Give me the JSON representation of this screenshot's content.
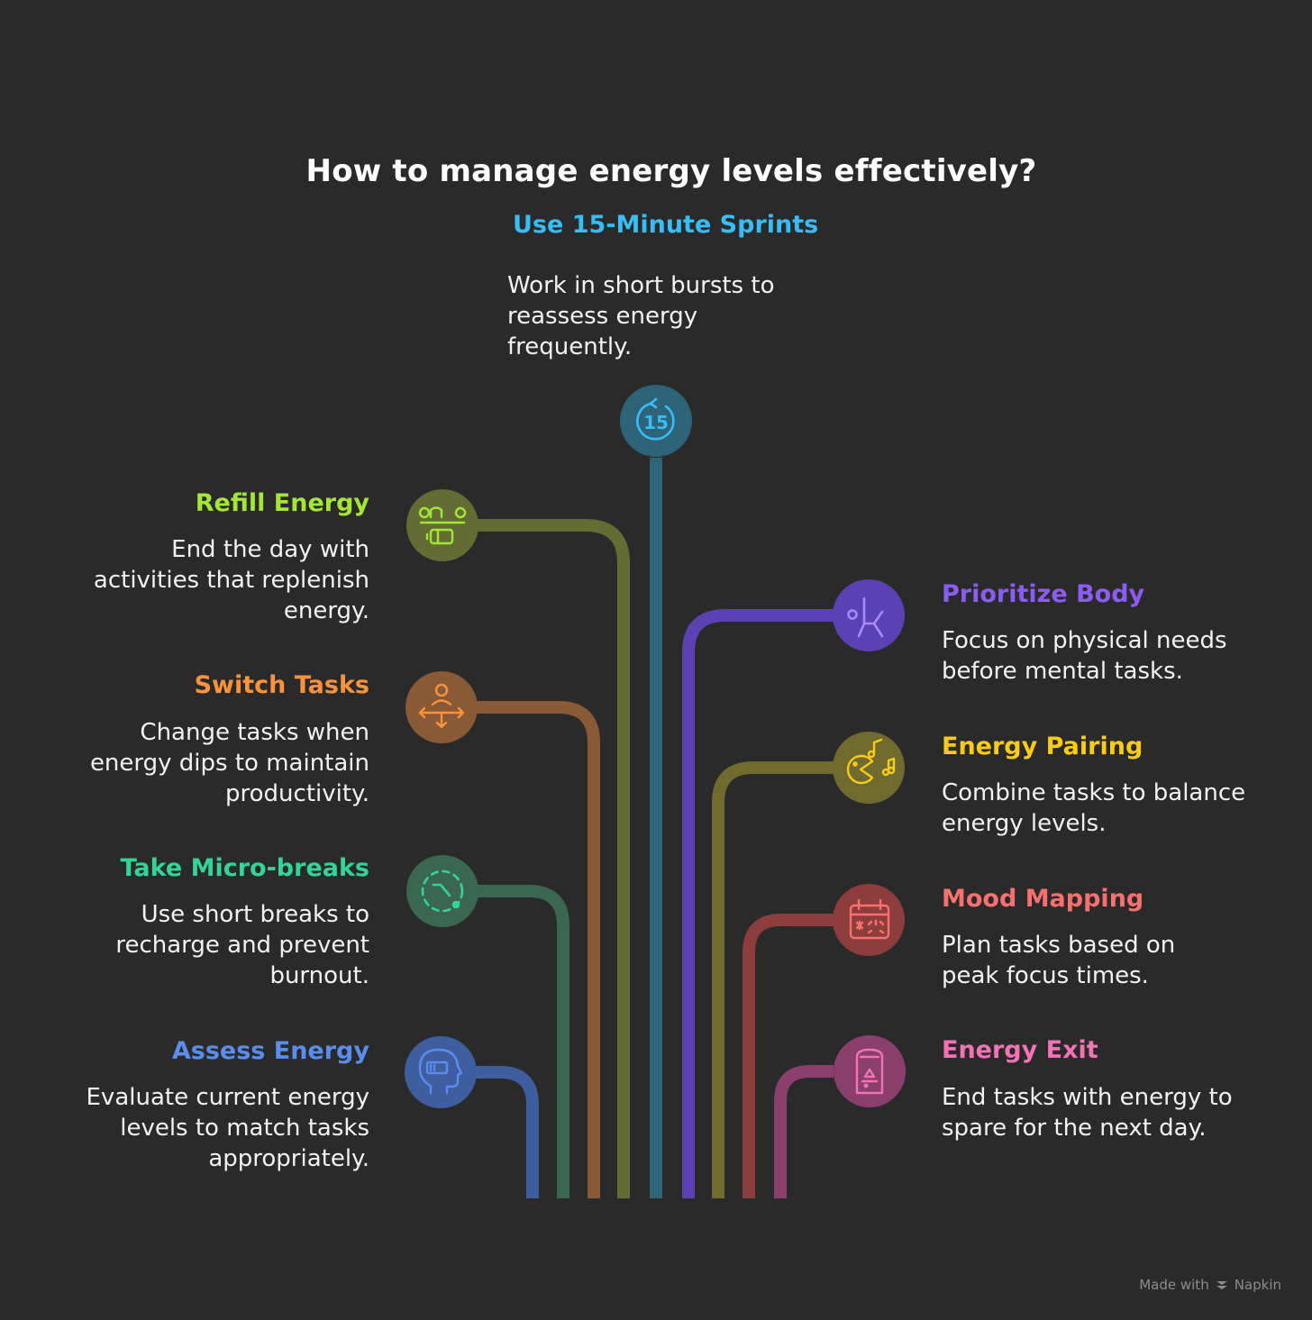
{
  "title": "How to manage energy levels effectively?",
  "items": {
    "sprints": {
      "heading": "Use 15-Minute Sprints",
      "description": "Work in short bursts to reassess energy frequently.",
      "color": "#38bdf8",
      "icon": "timer-15-icon",
      "icon_text": "15"
    },
    "refill": {
      "heading": "Refill Energy",
      "description": "End the day with activities that replenish energy.",
      "color": "#a3e635",
      "icon": "recharge-icon"
    },
    "switch": {
      "heading": "Switch Tasks",
      "description": "Change tasks when energy dips to maintain productivity.",
      "color": "#fb923c",
      "icon": "switch-person-icon"
    },
    "breaks": {
      "heading": "Take Micro-breaks",
      "description": "Use short breaks to recharge and prevent burnout.",
      "color": "#34d399",
      "icon": "timer-dashed-icon"
    },
    "assess": {
      "heading": "Assess Energy",
      "description": "Evaluate current energy levels to match tasks appropriately.",
      "color": "#5b8def",
      "icon": "head-battery-icon"
    },
    "body": {
      "heading": "Prioritize Body",
      "description": "Focus on physical needs before mental tasks.",
      "color": "#8b5cf6",
      "icon": "stretch-icon"
    },
    "pairing": {
      "heading": "Energy Pairing",
      "description": "Combine tasks to balance energy levels.",
      "color": "#facc15",
      "icon": "music-pacman-icon"
    },
    "mood": {
      "heading": "Mood Mapping",
      "description": "Plan tasks based on peak focus times.",
      "color": "#f87171",
      "icon": "calendar-icon"
    },
    "exit": {
      "heading": "Energy Exit",
      "description": "End tasks with energy to spare for the next day.",
      "color": "#f472b6",
      "icon": "door-exit-icon"
    }
  },
  "watermark": {
    "prefix": "Made with",
    "brand": "Napkin"
  }
}
